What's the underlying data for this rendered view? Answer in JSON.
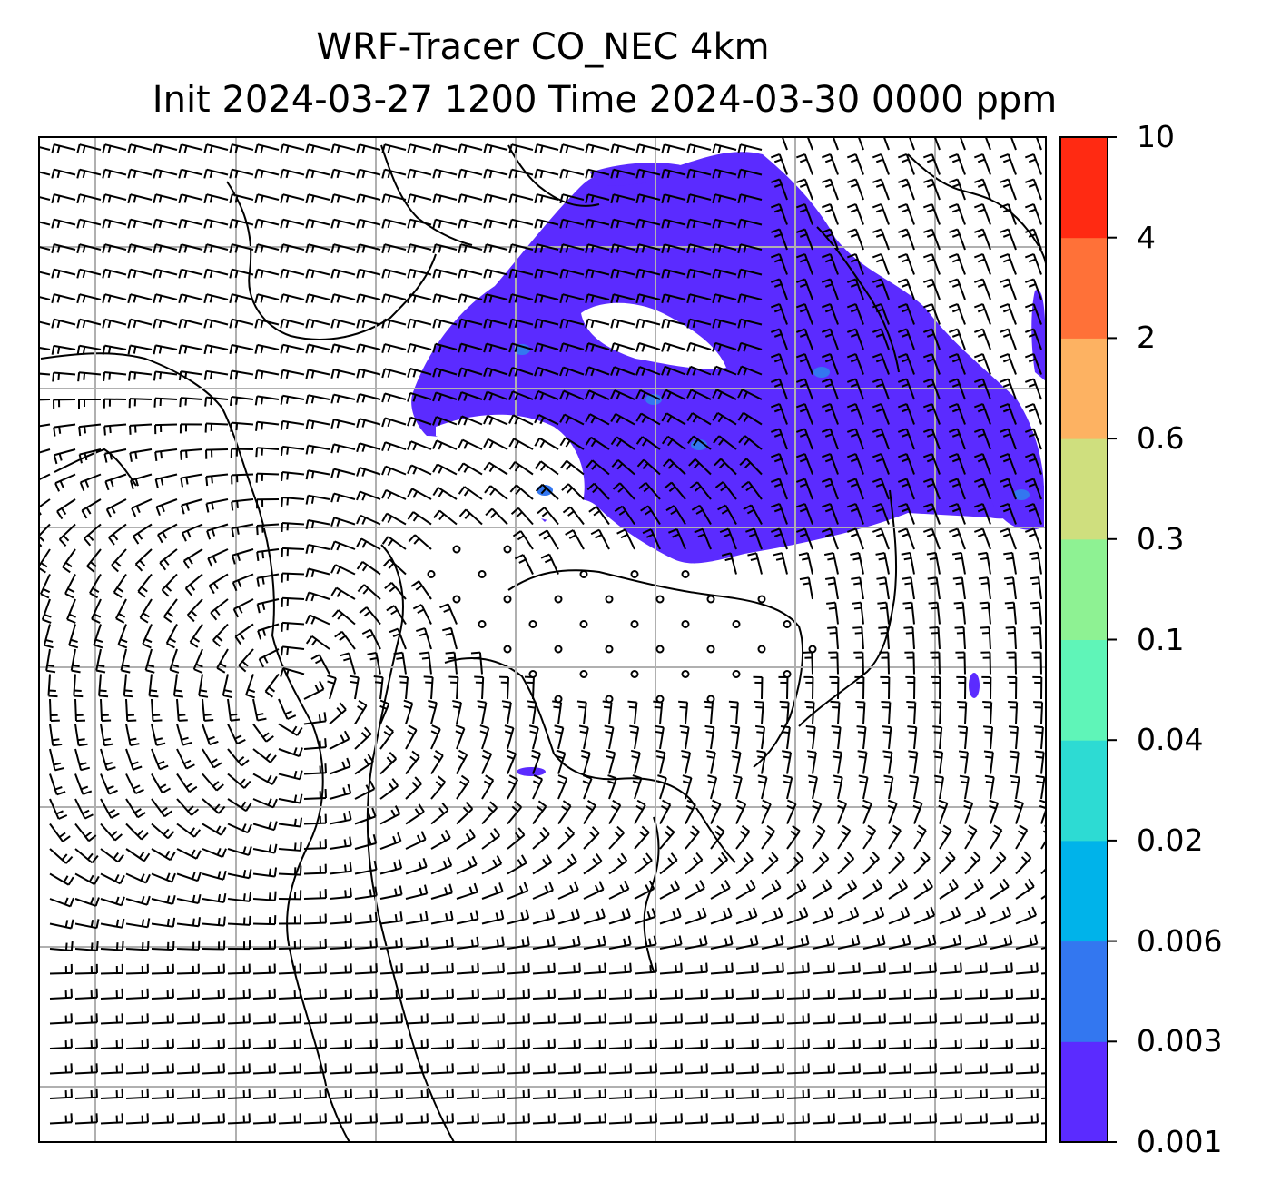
{
  "figure": {
    "title_line1": "WRF-Tracer CO_NEC 4km",
    "title_line2": "Init 2024-03-27 1200 Time 2024-03-30 0000 ppm"
  },
  "colorbar": {
    "tick_labels": [
      "0.001",
      "0.003",
      "0.006",
      "0.02",
      "0.04",
      "0.1",
      "0.3",
      "0.6",
      "2",
      "4",
      "10"
    ],
    "colors": [
      "#5b2bff",
      "#3377f0",
      "#00b3ea",
      "#2ddbd3",
      "#5ff5b8",
      "#8ef293",
      "#cfdf7e",
      "#fdb262",
      "#ff7138",
      "#ff2a12"
    ]
  },
  "map": {
    "grid": true,
    "tracer_fill_color": "#5b2bff",
    "tracer_peak_color": "#3377f0",
    "barb_color": "#000000",
    "coastline_color": "#000000"
  }
}
